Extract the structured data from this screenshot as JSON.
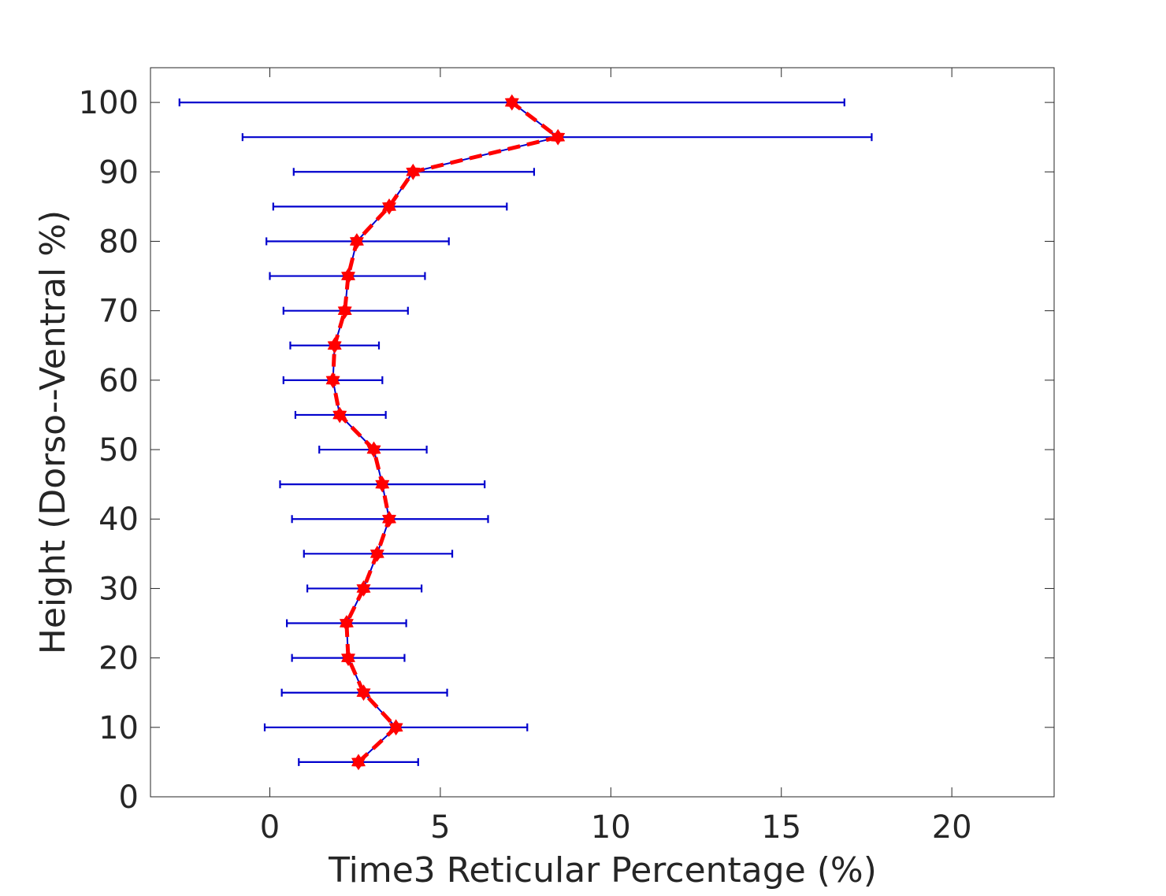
{
  "chart_data": {
    "type": "line",
    "title": "",
    "xlabel": "Time3 Reticular Percentage (%)",
    "ylabel": "Height (Dorso--Ventral %)",
    "xlim": [
      -3.5,
      23
    ],
    "ylim": [
      0,
      105
    ],
    "xticks": [
      0,
      5,
      10,
      15,
      20
    ],
    "xtick_labels": [
      "0",
      "5",
      "10",
      "15",
      "20"
    ],
    "yticks": [
      0,
      10,
      20,
      30,
      40,
      50,
      60,
      70,
      80,
      90,
      100
    ],
    "ytick_labels": [
      "0",
      "10",
      "20",
      "30",
      "40",
      "50",
      "60",
      "70",
      "80",
      "90",
      "100"
    ],
    "grid": false,
    "series": [
      {
        "y": [
          5,
          10,
          15,
          20,
          25,
          30,
          35,
          40,
          45,
          50,
          55,
          60,
          65,
          70,
          75,
          80,
          85,
          90,
          95,
          100
        ],
        "x": [
          2.6,
          3.7,
          2.75,
          2.3,
          2.25,
          2.75,
          3.15,
          3.5,
          3.3,
          3.05,
          2.05,
          1.85,
          1.9,
          2.2,
          2.3,
          2.55,
          3.5,
          4.2,
          8.45,
          7.1
        ],
        "x_err_low": [
          0.85,
          -0.15,
          0.35,
          0.65,
          0.5,
          1.1,
          1.0,
          0.65,
          0.3,
          1.45,
          0.75,
          0.4,
          0.6,
          0.4,
          0.0,
          -0.1,
          0.1,
          0.7,
          -0.8,
          -2.65
        ],
        "x_err_high": [
          4.35,
          7.55,
          5.2,
          3.95,
          4.0,
          4.45,
          5.35,
          6.4,
          6.3,
          4.6,
          3.4,
          3.3,
          3.2,
          4.05,
          4.55,
          5.25,
          6.95,
          7.75,
          17.65,
          16.85
        ]
      }
    ],
    "colors": {
      "errorbar": "#0000cd",
      "mean_line": "#ff0000",
      "marker": "#ff0000",
      "axes": "#262626"
    }
  }
}
